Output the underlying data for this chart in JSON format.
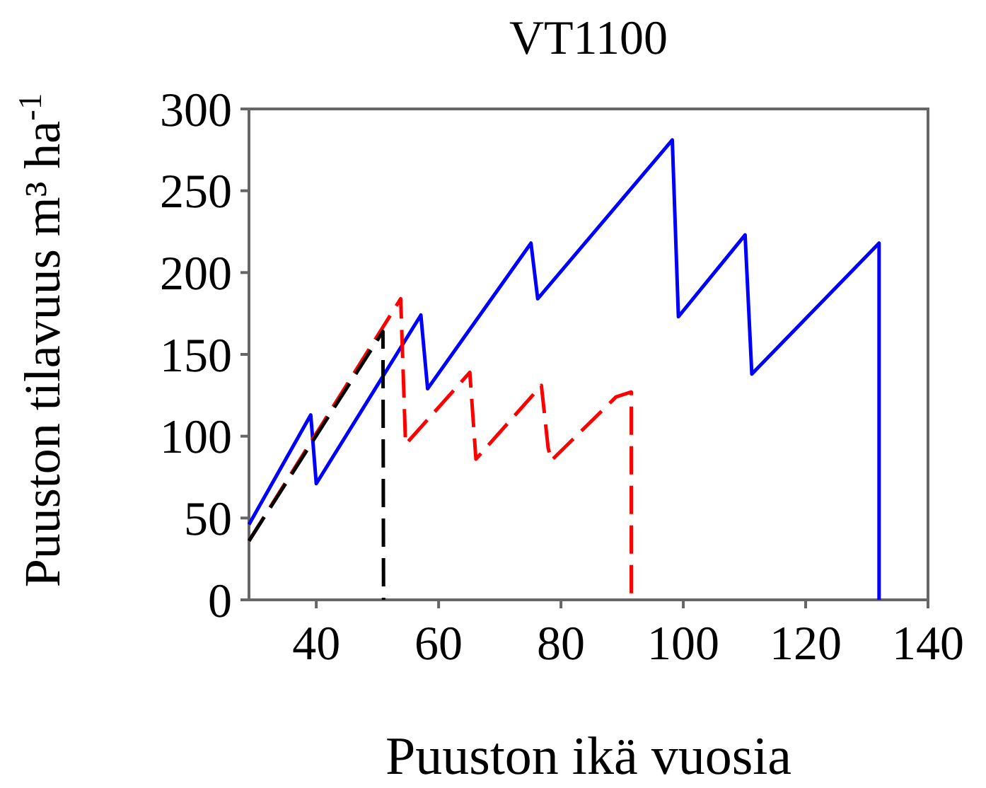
{
  "chart_data": {
    "type": "line",
    "title": "VT1100",
    "xlabel": "Puuston ikä vuosia",
    "ylabel": "Puuston tilavuus m³ ha$^{-1}$",
    "xlim": [
      29,
      140
    ],
    "xticks": [
      40,
      60,
      80,
      100,
      120,
      140
    ],
    "ylim": [
      0,
      300
    ],
    "yticks": [
      0,
      50,
      100,
      150,
      200,
      250,
      300
    ],
    "marker": "none",
    "series": [
      {
        "color": "#0000ff",
        "line_style": "solid",
        "x": [
          29,
          39.1,
          40,
          57.1,
          58.2,
          75.1,
          76.2,
          98.2,
          99.2,
          110.1,
          111.2,
          132,
          132
        ],
        "values": [
          46,
          113,
          71,
          174,
          129,
          218,
          184,
          281,
          173,
          223,
          138,
          218,
          0
        ]
      },
      {
        "color": "#ff0000",
        "line_style": "dashed",
        "x": [
          29,
          53.8,
          54.6,
          65.1,
          66.1,
          76.8,
          77.9,
          78.4,
          89,
          91.5,
          91.5
        ],
        "values": [
          36,
          184,
          95,
          139,
          86,
          131,
          93,
          85,
          124,
          127,
          0
        ]
      },
      {
        "color": "#000000",
        "line_style": "dashed",
        "x": [
          29,
          50.9,
          51
        ],
        "values": [
          36,
          164,
          0
        ]
      }
    ]
  }
}
